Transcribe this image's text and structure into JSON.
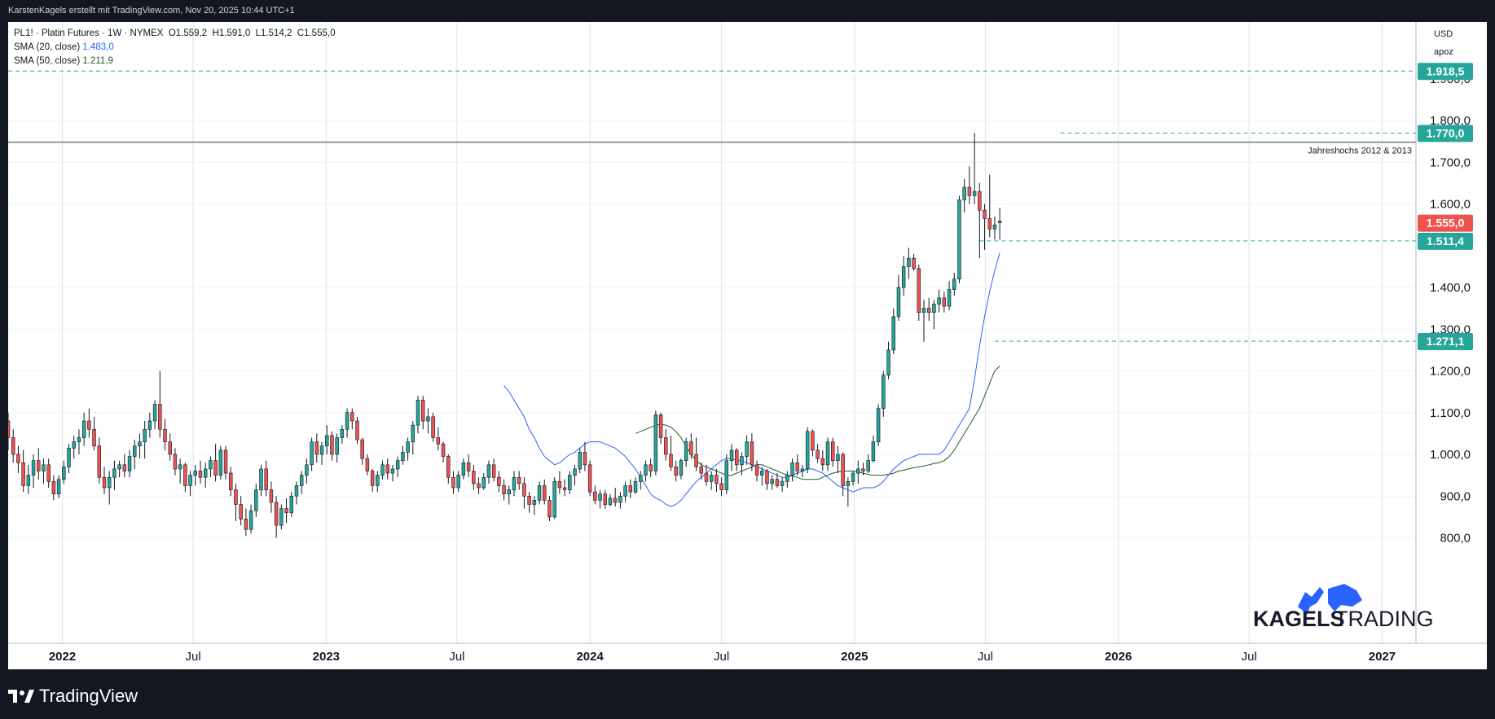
{
  "header": {
    "attribution": "KarstenKagels erstellt mit TradingView.com, Nov 20, 2025 10:44 UTC+1"
  },
  "legend": {
    "symbol_line": "PL1! · Platin Futures · 1W · NYMEX",
    "ohlc": {
      "o_label": "O",
      "o": "1.559,2",
      "h_label": "H",
      "h": "1.591,0",
      "l_label": "L",
      "l": "1.514,2",
      "c_label": "C",
      "c": "1.555,0"
    },
    "sma20_label": "SMA (20, close)",
    "sma20_value": "1.483,0",
    "sma50_label": "SMA (50, close)",
    "sma50_value": "1.211,9"
  },
  "axis": {
    "currency": "USD",
    "mode": "apoz",
    "y_ticks": [
      "1.900,0",
      "1.800,0",
      "1.700,0",
      "1.600,0",
      "1.400,0",
      "1.300,0",
      "1.200,0",
      "1.100,0",
      "1.000,0",
      "900,0",
      "800,0"
    ],
    "x_ticks": [
      "2022",
      "Jul",
      "2023",
      "Jul",
      "2024",
      "Jul",
      "2025",
      "Jul",
      "2026",
      "Jul",
      "2027"
    ]
  },
  "price_tags": [
    {
      "label": "1.918,5",
      "color": "#26a69a"
    },
    {
      "label": "1.770,0",
      "color": "#26a69a"
    },
    {
      "label": "1.555,0",
      "color": "#ef5350"
    },
    {
      "label": "1.511,4",
      "color": "#26a69a"
    },
    {
      "label": "1.271,1",
      "color": "#26a69a"
    }
  ],
  "annotation": "Jahreshochs 2012 & 2013",
  "brand": {
    "word1": "KAGELS",
    "word2": "TRADING"
  },
  "footer": {
    "logo_text": "TradingView"
  },
  "colors": {
    "up": "#26a69a",
    "down": "#ef5350",
    "sma20": "#2962ff",
    "sma50": "#1b5e20",
    "dashed": "#26a69a"
  },
  "chart_data": {
    "type": "candlestick",
    "title": "PL1! · Platin Futures · 1W · NYMEX",
    "ylim": [
      770,
      2000
    ],
    "x_range": [
      "2021-10-18",
      "2027-03-08"
    ],
    "horizontal_lines": [
      {
        "value": 1918.5,
        "style": "dashed"
      },
      {
        "value": 1770.0,
        "style": "dashed",
        "from": "2025-10-13"
      },
      {
        "value": 1748,
        "style": "solid",
        "label": "Jahreshochs 2012 & 2013"
      },
      {
        "value": 1511.4,
        "style": "dashed",
        "from": "2025-06-23"
      },
      {
        "value": 1271.1,
        "style": "dashed",
        "from": "2025-07-14"
      }
    ],
    "candles": [
      [
        1080,
        1100,
        1010,
        1040
      ],
      [
        1040,
        1060,
        980,
        1000
      ],
      [
        1000,
        1020,
        955,
        980
      ],
      [
        980,
        1010,
        910,
        925
      ],
      [
        925,
        975,
        905,
        950
      ],
      [
        950,
        1000,
        920,
        985
      ],
      [
        985,
        1015,
        940,
        960
      ],
      [
        960,
        990,
        930,
        975
      ],
      [
        975,
        990,
        920,
        935
      ],
      [
        935,
        950,
        890,
        905
      ],
      [
        905,
        950,
        895,
        940
      ],
      [
        940,
        985,
        930,
        970
      ],
      [
        970,
        1025,
        955,
        1015
      ],
      [
        1015,
        1045,
        990,
        1030
      ],
      [
        1030,
        1060,
        1000,
        1040
      ],
      [
        1040,
        1100,
        1020,
        1080
      ],
      [
        1080,
        1110,
        1040,
        1060
      ],
      [
        1060,
        1090,
        1010,
        1020
      ],
      [
        1020,
        1040,
        930,
        945
      ],
      [
        945,
        970,
        905,
        920
      ],
      [
        920,
        960,
        880,
        945
      ],
      [
        945,
        985,
        915,
        965
      ],
      [
        965,
        985,
        945,
        975
      ],
      [
        975,
        1000,
        945,
        960
      ],
      [
        960,
        1010,
        945,
        995
      ],
      [
        995,
        1035,
        965,
        1020
      ],
      [
        1020,
        1050,
        990,
        1030
      ],
      [
        1030,
        1080,
        990,
        1060
      ],
      [
        1060,
        1100,
        1040,
        1080
      ],
      [
        1080,
        1130,
        1060,
        1120
      ],
      [
        1120,
        1200,
        1040,
        1060
      ],
      [
        1060,
        1085,
        1010,
        1030
      ],
      [
        1030,
        1050,
        985,
        1000
      ],
      [
        1000,
        1015,
        950,
        965
      ],
      [
        965,
        990,
        930,
        975
      ],
      [
        975,
        980,
        910,
        925
      ],
      [
        925,
        960,
        900,
        950
      ],
      [
        950,
        975,
        925,
        960
      ],
      [
        960,
        985,
        930,
        945
      ],
      [
        945,
        980,
        920,
        965
      ],
      [
        965,
        995,
        945,
        985
      ],
      [
        985,
        1025,
        935,
        950
      ],
      [
        950,
        1020,
        940,
        1010
      ],
      [
        1010,
        1020,
        940,
        955
      ],
      [
        955,
        970,
        900,
        915
      ],
      [
        915,
        930,
        840,
        880
      ],
      [
        880,
        900,
        830,
        845
      ],
      [
        845,
        870,
        805,
        820
      ],
      [
        820,
        880,
        810,
        865
      ],
      [
        865,
        930,
        850,
        915
      ],
      [
        915,
        975,
        900,
        965
      ],
      [
        965,
        985,
        900,
        915
      ],
      [
        915,
        935,
        860,
        885
      ],
      [
        885,
        900,
        800,
        830
      ],
      [
        830,
        880,
        820,
        870
      ],
      [
        870,
        895,
        835,
        860
      ],
      [
        860,
        910,
        850,
        900
      ],
      [
        900,
        935,
        880,
        925
      ],
      [
        925,
        960,
        905,
        950
      ],
      [
        950,
        990,
        930,
        975
      ],
      [
        975,
        1040,
        960,
        1030
      ],
      [
        1030,
        1050,
        980,
        1000
      ],
      [
        1000,
        1030,
        975,
        1020
      ],
      [
        1020,
        1070,
        1000,
        1045
      ],
      [
        1045,
        1055,
        985,
        1000
      ],
      [
        1000,
        1050,
        980,
        1040
      ],
      [
        1040,
        1070,
        1025,
        1060
      ],
      [
        1060,
        1110,
        1040,
        1100
      ],
      [
        1100,
        1110,
        1060,
        1080
      ],
      [
        1080,
        1090,
        1025,
        1035
      ],
      [
        1035,
        1040,
        975,
        990
      ],
      [
        990,
        1000,
        950,
        960
      ],
      [
        960,
        965,
        910,
        925
      ],
      [
        925,
        960,
        910,
        950
      ],
      [
        950,
        985,
        940,
        975
      ],
      [
        975,
        990,
        940,
        955
      ],
      [
        955,
        975,
        935,
        965
      ],
      [
        965,
        995,
        945,
        985
      ],
      [
        985,
        1020,
        975,
        1005
      ],
      [
        1005,
        1040,
        985,
        1030
      ],
      [
        1030,
        1080,
        1000,
        1070
      ],
      [
        1070,
        1140,
        1050,
        1130
      ],
      [
        1130,
        1140,
        1060,
        1080
      ],
      [
        1080,
        1110,
        1050,
        1090
      ],
      [
        1090,
        1100,
        1030,
        1040
      ],
      [
        1040,
        1065,
        1010,
        1025
      ],
      [
        1025,
        1030,
        980,
        995
      ],
      [
        995,
        1000,
        930,
        945
      ],
      [
        945,
        960,
        905,
        920
      ],
      [
        920,
        960,
        910,
        950
      ],
      [
        950,
        990,
        940,
        980
      ],
      [
        980,
        1000,
        945,
        960
      ],
      [
        960,
        975,
        915,
        930
      ],
      [
        930,
        945,
        905,
        920
      ],
      [
        920,
        955,
        915,
        945
      ],
      [
        945,
        985,
        930,
        975
      ],
      [
        975,
        990,
        935,
        945
      ],
      [
        945,
        960,
        910,
        925
      ],
      [
        925,
        940,
        890,
        905
      ],
      [
        905,
        925,
        880,
        915
      ],
      [
        915,
        960,
        900,
        945
      ],
      [
        945,
        960,
        915,
        930
      ],
      [
        930,
        945,
        870,
        900
      ],
      [
        900,
        910,
        860,
        880
      ],
      [
        880,
        900,
        855,
        890
      ],
      [
        890,
        935,
        880,
        925
      ],
      [
        925,
        940,
        880,
        890
      ],
      [
        890,
        900,
        840,
        850
      ],
      [
        850,
        945,
        845,
        935
      ],
      [
        935,
        960,
        905,
        920
      ],
      [
        920,
        940,
        900,
        915
      ],
      [
        915,
        960,
        905,
        950
      ],
      [
        950,
        975,
        925,
        965
      ],
      [
        965,
        1015,
        955,
        1005
      ],
      [
        1005,
        1030,
        960,
        975
      ],
      [
        975,
        985,
        900,
        910
      ],
      [
        910,
        925,
        880,
        890
      ],
      [
        890,
        915,
        870,
        905
      ],
      [
        905,
        915,
        870,
        880
      ],
      [
        880,
        905,
        875,
        895
      ],
      [
        895,
        920,
        875,
        885
      ],
      [
        885,
        910,
        870,
        900
      ],
      [
        900,
        935,
        885,
        925
      ],
      [
        925,
        940,
        895,
        910
      ],
      [
        910,
        945,
        905,
        935
      ],
      [
        935,
        960,
        915,
        950
      ],
      [
        950,
        985,
        935,
        975
      ],
      [
        975,
        990,
        945,
        960
      ],
      [
        960,
        1105,
        950,
        1095
      ],
      [
        1095,
        1100,
        1025,
        1040
      ],
      [
        1040,
        1060,
        985,
        1000
      ],
      [
        1000,
        1045,
        960,
        970
      ],
      [
        970,
        985,
        935,
        950
      ],
      [
        950,
        990,
        940,
        985
      ],
      [
        985,
        1040,
        970,
        1030
      ],
      [
        1030,
        1050,
        990,
        1000
      ],
      [
        1000,
        1040,
        960,
        970
      ],
      [
        970,
        980,
        940,
        955
      ],
      [
        955,
        975,
        925,
        935
      ],
      [
        935,
        960,
        915,
        950
      ],
      [
        950,
        965,
        910,
        930
      ],
      [
        930,
        945,
        900,
        915
      ],
      [
        915,
        1000,
        905,
        985
      ],
      [
        985,
        1025,
        960,
        1010
      ],
      [
        1010,
        1015,
        960,
        975
      ],
      [
        975,
        1005,
        950,
        995
      ],
      [
        995,
        1045,
        975,
        1030
      ],
      [
        1030,
        1050,
        960,
        975
      ],
      [
        975,
        985,
        935,
        950
      ],
      [
        950,
        970,
        925,
        960
      ],
      [
        960,
        965,
        915,
        930
      ],
      [
        930,
        950,
        915,
        940
      ],
      [
        940,
        955,
        920,
        925
      ],
      [
        925,
        945,
        910,
        935
      ],
      [
        935,
        960,
        920,
        950
      ],
      [
        950,
        990,
        935,
        980
      ],
      [
        980,
        1000,
        950,
        960
      ],
      [
        960,
        975,
        945,
        965
      ],
      [
        965,
        1065,
        955,
        1055
      ],
      [
        1055,
        1060,
        995,
        1010
      ],
      [
        1010,
        1025,
        980,
        990
      ],
      [
        990,
        1010,
        960,
        975
      ],
      [
        975,
        1040,
        960,
        1030
      ],
      [
        1030,
        1040,
        970,
        985
      ],
      [
        985,
        1020,
        955,
        1000
      ],
      [
        1000,
        1005,
        900,
        925
      ],
      [
        925,
        945,
        875,
        935
      ],
      [
        935,
        960,
        925,
        955
      ],
      [
        955,
        985,
        930,
        965
      ],
      [
        965,
        980,
        950,
        960
      ],
      [
        960,
        1000,
        955,
        985
      ],
      [
        985,
        1045,
        980,
        1030
      ],
      [
        1030,
        1120,
        1020,
        1110
      ],
      [
        1110,
        1200,
        1090,
        1190
      ],
      [
        1190,
        1270,
        1180,
        1250
      ],
      [
        1250,
        1350,
        1240,
        1330
      ],
      [
        1330,
        1430,
        1320,
        1400
      ],
      [
        1400,
        1475,
        1380,
        1450
      ],
      [
        1450,
        1495,
        1420,
        1470
      ],
      [
        1470,
        1480,
        1440,
        1445
      ],
      [
        1445,
        1455,
        1320,
        1340
      ],
      [
        1340,
        1370,
        1270,
        1350
      ],
      [
        1350,
        1375,
        1320,
        1340
      ],
      [
        1340,
        1370,
        1300,
        1360
      ],
      [
        1360,
        1395,
        1340,
        1375
      ],
      [
        1375,
        1390,
        1340,
        1355
      ],
      [
        1355,
        1415,
        1345,
        1395
      ],
      [
        1395,
        1435,
        1380,
        1420
      ],
      [
        1420,
        1620,
        1410,
        1610
      ],
      [
        1610,
        1660,
        1580,
        1640
      ],
      [
        1640,
        1690,
        1600,
        1620
      ],
      [
        1620,
        1770,
        1600,
        1630
      ],
      [
        1630,
        1650,
        1470,
        1585
      ],
      [
        1585,
        1600,
        1490,
        1565
      ],
      [
        1565,
        1670,
        1520,
        1540
      ],
      [
        1540,
        1570,
        1515,
        1550
      ],
      [
        1559.2,
        1591,
        1514.2,
        1555
      ]
    ],
    "sma20": [
      1165,
      1150,
      1130,
      1110,
      1090,
      1060,
      1040,
      1015,
      995,
      985,
      975,
      980,
      990,
      1000,
      1005,
      1015,
      1025,
      1030,
      1030,
      1030,
      1025,
      1020,
      1015,
      1005,
      995,
      980,
      965,
      945,
      925,
      905,
      895,
      890,
      880,
      875,
      880,
      890,
      905,
      920,
      935,
      945,
      955,
      965,
      975,
      985,
      990,
      990,
      985,
      985,
      980,
      975,
      970,
      965,
      960,
      955,
      950,
      945,
      945,
      950,
      955,
      960,
      965,
      965,
      960,
      955,
      945,
      935,
      925,
      920,
      915,
      910,
      915,
      920,
      920,
      920,
      925,
      935,
      950,
      965,
      975,
      985,
      990,
      995,
      1000,
      1000,
      1000,
      1000,
      1000,
      1010,
      1030,
      1050,
      1070,
      1090,
      1110,
      1180,
      1260,
      1330,
      1390,
      1440,
      1483
    ],
    "sma50": [
      1050,
      1055,
      1060,
      1065,
      1070,
      1072,
      1070,
      1065,
      1055,
      1040,
      1020,
      1000,
      985,
      975,
      970,
      965,
      960,
      955,
      950,
      950,
      955,
      960,
      965,
      970,
      975,
      975,
      970,
      965,
      960,
      955,
      950,
      948,
      945,
      940,
      940,
      940,
      940,
      945,
      950,
      955,
      958,
      960,
      960,
      960,
      958,
      955,
      952,
      950,
      950,
      950,
      952,
      955,
      960,
      962,
      965,
      968,
      970,
      972,
      975,
      978,
      980,
      985,
      995,
      1010,
      1030,
      1050,
      1070,
      1090,
      1110,
      1140,
      1170,
      1200,
      1211.9
    ]
  }
}
